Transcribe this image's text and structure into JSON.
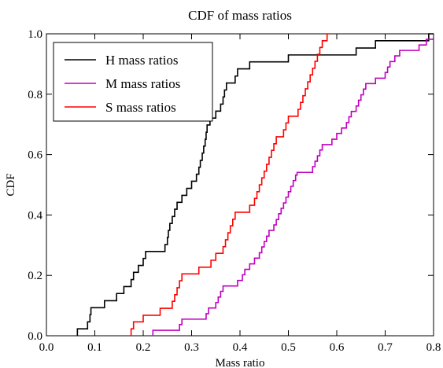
{
  "chart_data": {
    "type": "line",
    "title": "CDF of mass ratios",
    "xlabel": "Mass ratio",
    "ylabel": "CDF",
    "xlim": [
      0.0,
      0.8
    ],
    "ylim": [
      0.0,
      1.0
    ],
    "xticks": [
      "0.0",
      "0.1",
      "0.2",
      "0.3",
      "0.4",
      "0.5",
      "0.6",
      "0.7",
      "0.8"
    ],
    "yticks": [
      "0.0",
      "0.2",
      "0.4",
      "0.6",
      "0.8",
      "1.0"
    ],
    "grid": false,
    "legend_position": "top-left",
    "series": [
      {
        "name": "H mass ratios",
        "color": "#000000",
        "step": "post",
        "points": [
          [
            0.064,
            0.0
          ],
          [
            0.064,
            0.023
          ],
          [
            0.085,
            0.023
          ],
          [
            0.085,
            0.046
          ],
          [
            0.09,
            0.07
          ],
          [
            0.092,
            0.093
          ],
          [
            0.12,
            0.093
          ],
          [
            0.12,
            0.116
          ],
          [
            0.145,
            0.116
          ],
          [
            0.145,
            0.14
          ],
          [
            0.16,
            0.14
          ],
          [
            0.16,
            0.163
          ],
          [
            0.175,
            0.186
          ],
          [
            0.18,
            0.21
          ],
          [
            0.19,
            0.233
          ],
          [
            0.2,
            0.256
          ],
          [
            0.205,
            0.279
          ],
          [
            0.245,
            0.279
          ],
          [
            0.245,
            0.302
          ],
          [
            0.25,
            0.326
          ],
          [
            0.252,
            0.349
          ],
          [
            0.255,
            0.372
          ],
          [
            0.26,
            0.395
          ],
          [
            0.265,
            0.419
          ],
          [
            0.27,
            0.442
          ],
          [
            0.28,
            0.465
          ],
          [
            0.29,
            0.488
          ],
          [
            0.3,
            0.488
          ],
          [
            0.3,
            0.512
          ],
          [
            0.31,
            0.535
          ],
          [
            0.315,
            0.558
          ],
          [
            0.318,
            0.581
          ],
          [
            0.322,
            0.605
          ],
          [
            0.325,
            0.628
          ],
          [
            0.328,
            0.651
          ],
          [
            0.33,
            0.674
          ],
          [
            0.332,
            0.698
          ],
          [
            0.338,
            0.721
          ],
          [
            0.35,
            0.721
          ],
          [
            0.35,
            0.744
          ],
          [
            0.36,
            0.767
          ],
          [
            0.365,
            0.791
          ],
          [
            0.368,
            0.814
          ],
          [
            0.372,
            0.837
          ],
          [
            0.39,
            0.837
          ],
          [
            0.39,
            0.86
          ],
          [
            0.395,
            0.884
          ],
          [
            0.42,
            0.907
          ],
          [
            0.5,
            0.907
          ],
          [
            0.5,
            0.93
          ],
          [
            0.64,
            0.93
          ],
          [
            0.64,
            0.953
          ],
          [
            0.68,
            0.953
          ],
          [
            0.68,
            0.977
          ],
          [
            0.79,
            0.977
          ],
          [
            0.79,
            1.0
          ],
          [
            0.8,
            1.0
          ]
        ]
      },
      {
        "name": "M mass ratios",
        "color": "#bf00bf",
        "step": "post",
        "points": [
          [
            0.22,
            0.0
          ],
          [
            0.22,
            0.018
          ],
          [
            0.275,
            0.018
          ],
          [
            0.275,
            0.037
          ],
          [
            0.28,
            0.055
          ],
          [
            0.33,
            0.055
          ],
          [
            0.33,
            0.073
          ],
          [
            0.335,
            0.092
          ],
          [
            0.35,
            0.11
          ],
          [
            0.355,
            0.128
          ],
          [
            0.36,
            0.147
          ],
          [
            0.365,
            0.165
          ],
          [
            0.395,
            0.165
          ],
          [
            0.395,
            0.183
          ],
          [
            0.405,
            0.202
          ],
          [
            0.41,
            0.22
          ],
          [
            0.42,
            0.238
          ],
          [
            0.43,
            0.257
          ],
          [
            0.44,
            0.275
          ],
          [
            0.445,
            0.294
          ],
          [
            0.45,
            0.312
          ],
          [
            0.455,
            0.33
          ],
          [
            0.46,
            0.349
          ],
          [
            0.47,
            0.367
          ],
          [
            0.475,
            0.385
          ],
          [
            0.48,
            0.404
          ],
          [
            0.485,
            0.422
          ],
          [
            0.49,
            0.44
          ],
          [
            0.495,
            0.459
          ],
          [
            0.5,
            0.477
          ],
          [
            0.505,
            0.495
          ],
          [
            0.51,
            0.514
          ],
          [
            0.515,
            0.532
          ],
          [
            0.518,
            0.541
          ],
          [
            0.55,
            0.541
          ],
          [
            0.55,
            0.56
          ],
          [
            0.555,
            0.578
          ],
          [
            0.56,
            0.596
          ],
          [
            0.565,
            0.615
          ],
          [
            0.57,
            0.633
          ],
          [
            0.59,
            0.633
          ],
          [
            0.59,
            0.651
          ],
          [
            0.6,
            0.67
          ],
          [
            0.61,
            0.688
          ],
          [
            0.62,
            0.706
          ],
          [
            0.625,
            0.725
          ],
          [
            0.63,
            0.743
          ],
          [
            0.64,
            0.761
          ],
          [
            0.645,
            0.78
          ],
          [
            0.65,
            0.798
          ],
          [
            0.655,
            0.817
          ],
          [
            0.66,
            0.835
          ],
          [
            0.68,
            0.835
          ],
          [
            0.68,
            0.853
          ],
          [
            0.7,
            0.853
          ],
          [
            0.7,
            0.872
          ],
          [
            0.705,
            0.89
          ],
          [
            0.71,
            0.908
          ],
          [
            0.72,
            0.927
          ],
          [
            0.73,
            0.945
          ],
          [
            0.77,
            0.945
          ],
          [
            0.77,
            0.963
          ],
          [
            0.785,
            0.982
          ],
          [
            0.8,
            0.982
          ]
        ]
      },
      {
        "name": "S mass ratios",
        "color": "#ff0000",
        "step": "post",
        "points": [
          [
            0.175,
            0.0
          ],
          [
            0.175,
            0.023
          ],
          [
            0.18,
            0.046
          ],
          [
            0.2,
            0.046
          ],
          [
            0.2,
            0.068
          ],
          [
            0.235,
            0.068
          ],
          [
            0.235,
            0.091
          ],
          [
            0.26,
            0.091
          ],
          [
            0.26,
            0.114
          ],
          [
            0.265,
            0.136
          ],
          [
            0.27,
            0.159
          ],
          [
            0.275,
            0.182
          ],
          [
            0.28,
            0.205
          ],
          [
            0.315,
            0.205
          ],
          [
            0.315,
            0.227
          ],
          [
            0.34,
            0.227
          ],
          [
            0.34,
            0.25
          ],
          [
            0.35,
            0.273
          ],
          [
            0.365,
            0.273
          ],
          [
            0.365,
            0.295
          ],
          [
            0.37,
            0.318
          ],
          [
            0.375,
            0.341
          ],
          [
            0.38,
            0.364
          ],
          [
            0.385,
            0.386
          ],
          [
            0.39,
            0.409
          ],
          [
            0.42,
            0.409
          ],
          [
            0.42,
            0.432
          ],
          [
            0.43,
            0.455
          ],
          [
            0.435,
            0.477
          ],
          [
            0.44,
            0.5
          ],
          [
            0.445,
            0.523
          ],
          [
            0.45,
            0.545
          ],
          [
            0.455,
            0.568
          ],
          [
            0.46,
            0.591
          ],
          [
            0.465,
            0.614
          ],
          [
            0.47,
            0.636
          ],
          [
            0.475,
            0.659
          ],
          [
            0.49,
            0.659
          ],
          [
            0.49,
            0.682
          ],
          [
            0.495,
            0.705
          ],
          [
            0.5,
            0.727
          ],
          [
            0.52,
            0.727
          ],
          [
            0.52,
            0.75
          ],
          [
            0.525,
            0.773
          ],
          [
            0.53,
            0.795
          ],
          [
            0.535,
            0.818
          ],
          [
            0.54,
            0.841
          ],
          [
            0.545,
            0.864
          ],
          [
            0.55,
            0.886
          ],
          [
            0.555,
            0.909
          ],
          [
            0.56,
            0.932
          ],
          [
            0.565,
            0.955
          ],
          [
            0.57,
            0.977
          ],
          [
            0.58,
            1.0
          ],
          [
            0.585,
            1.0
          ]
        ]
      }
    ]
  }
}
